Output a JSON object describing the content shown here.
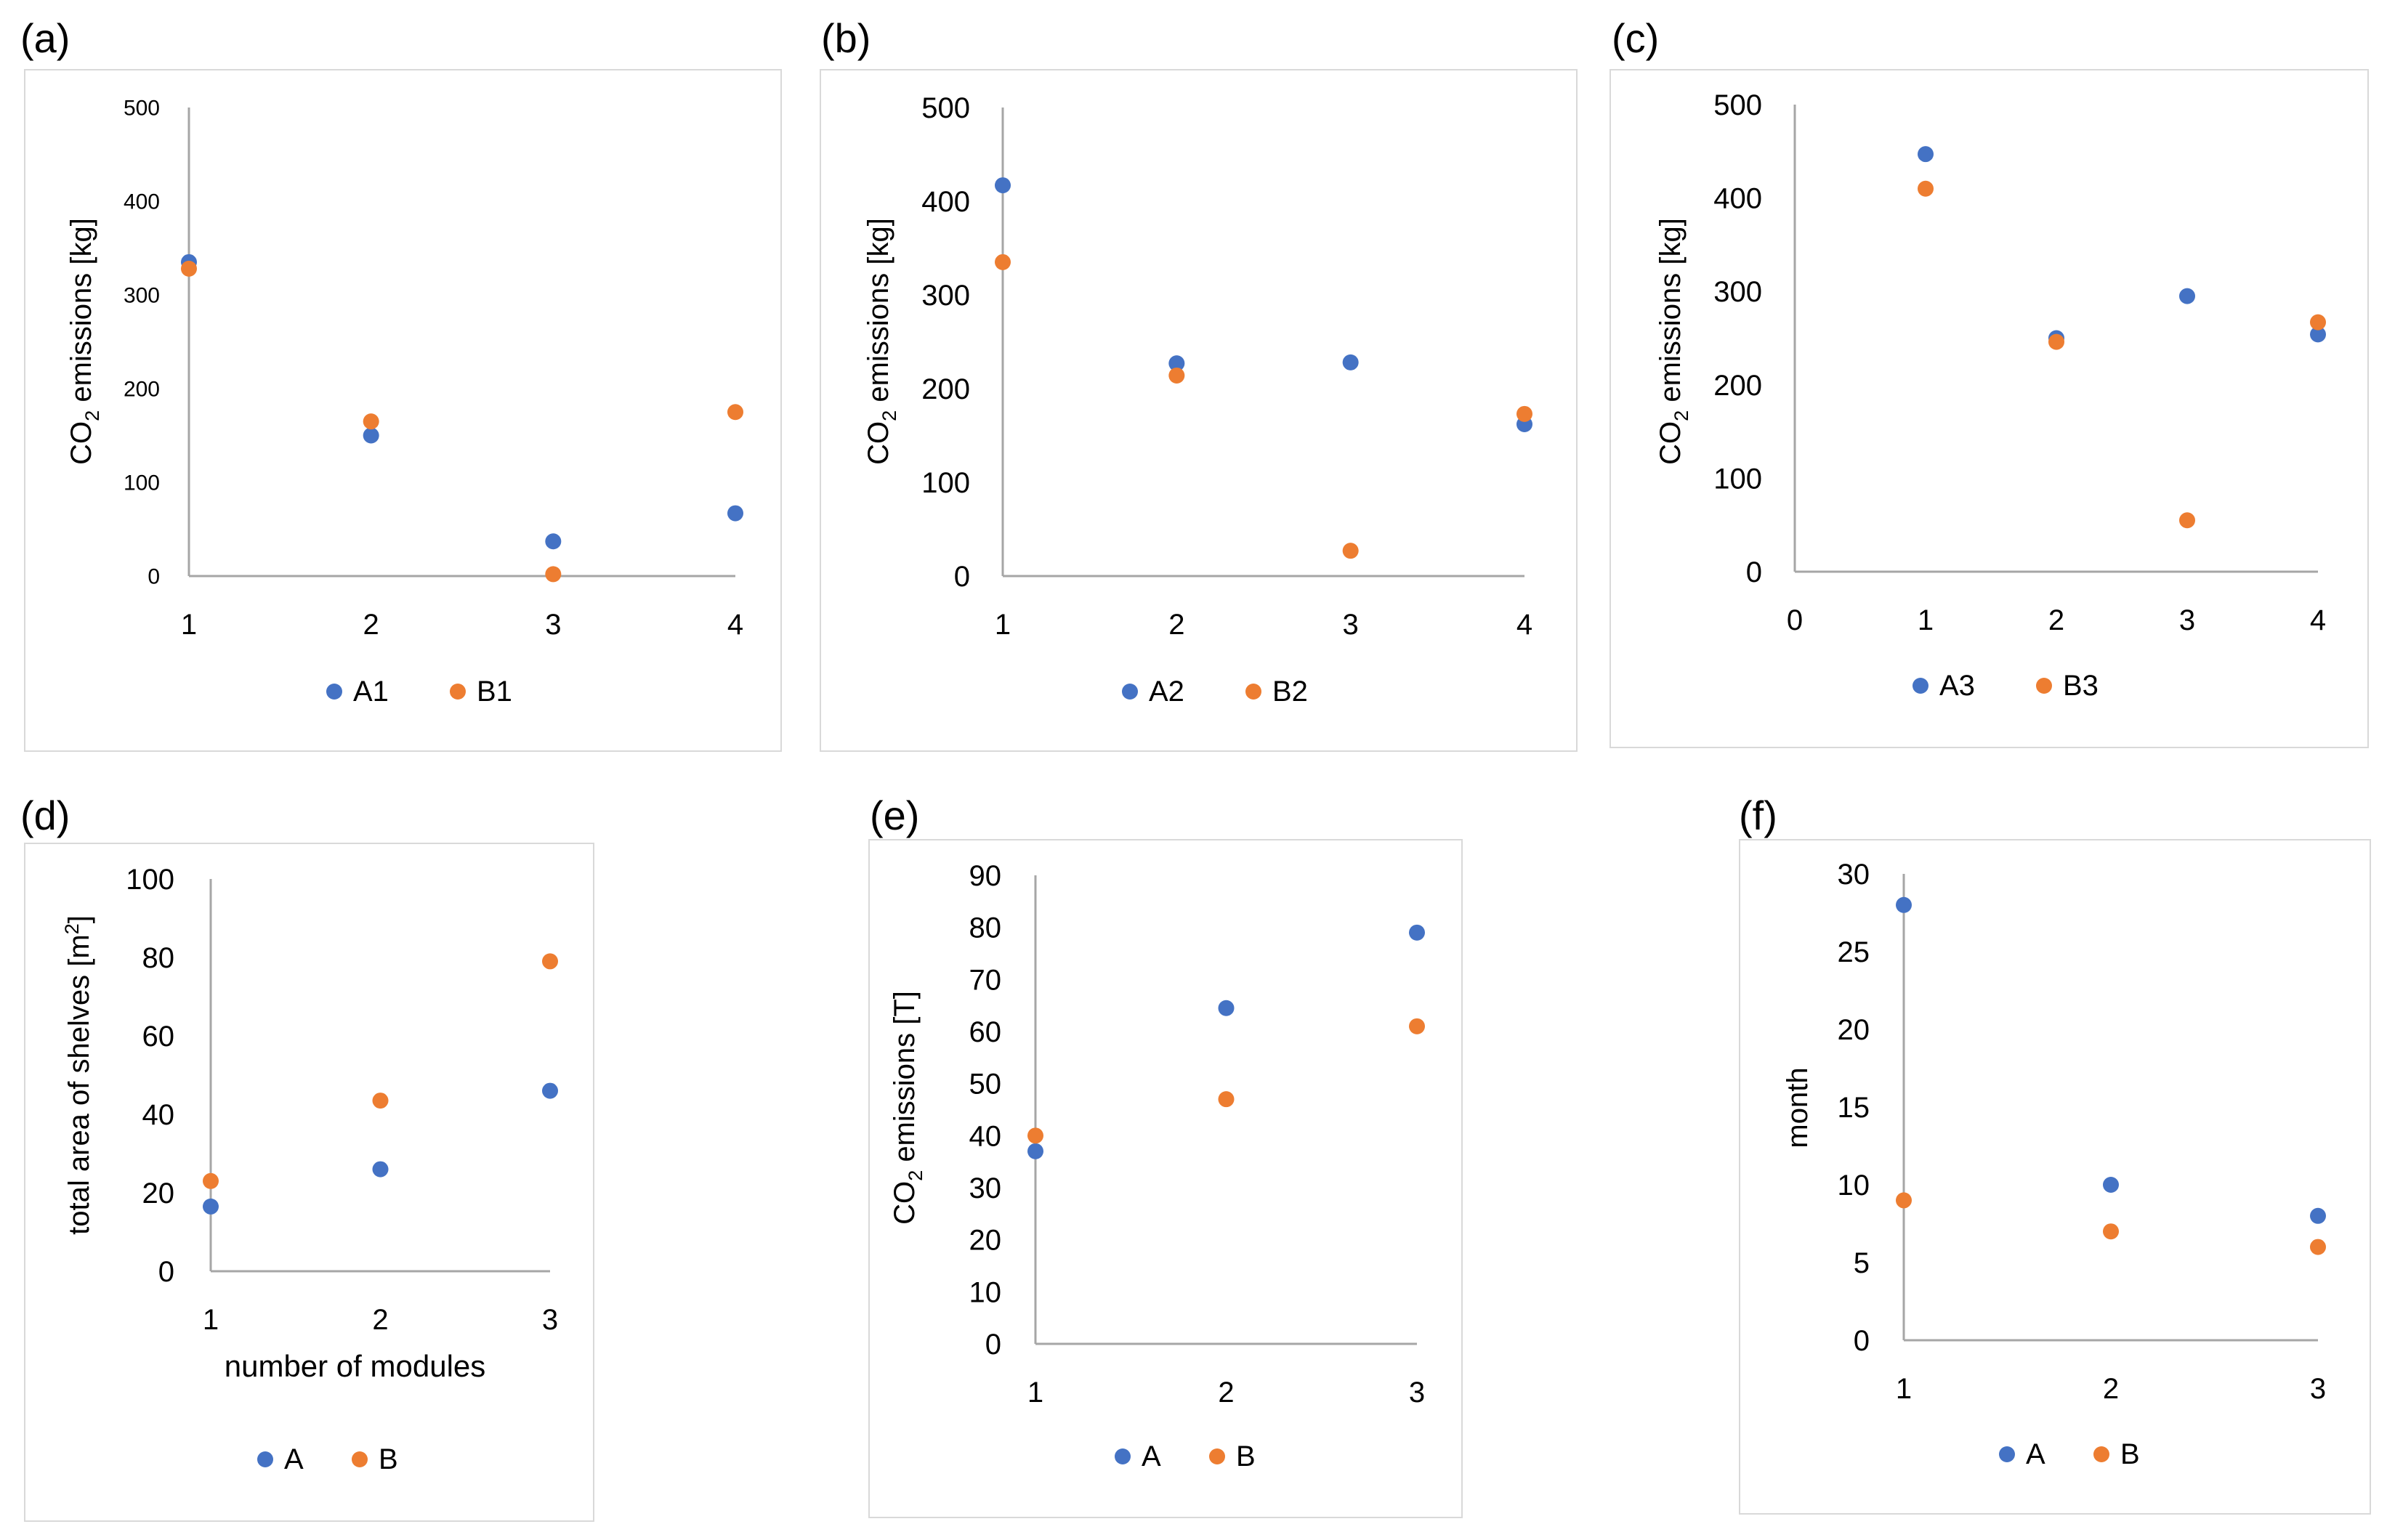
{
  "colors": {
    "A": "#4472c4",
    "B": "#ed7d31",
    "axis": "#a6a6a6",
    "border": "#d9d9d9"
  },
  "chart_data": [
    {
      "panel": "(a)",
      "type": "scatter",
      "xlabel": "",
      "ylabel_main": "CO",
      "ylabel_sub": "2",
      "ylabel_rest": " emissions [kg]",
      "xlim": [
        1,
        4
      ],
      "ylim": [
        0,
        500
      ],
      "xticks": [
        "1",
        "2",
        "3",
        "4"
      ],
      "yticks": [
        "0",
        "100",
        "200",
        "300",
        "400",
        "500"
      ],
      "series": [
        {
          "name": "A1",
          "color": "A",
          "x": [
            1,
            2,
            3,
            4
          ],
          "y": [
            335,
            150,
            37,
            67
          ]
        },
        {
          "name": "B1",
          "color": "B",
          "x": [
            1,
            2,
            3,
            4
          ],
          "y": [
            328,
            165,
            2,
            175
          ]
        }
      ]
    },
    {
      "panel": "(b)",
      "type": "scatter",
      "xlabel": "",
      "ylabel_main": "CO",
      "ylabel_sub": "2",
      "ylabel_rest": " emissions [kg]",
      "xlim": [
        1,
        4
      ],
      "ylim": [
        0,
        500
      ],
      "xticks": [
        "1",
        "2",
        "3",
        "4"
      ],
      "yticks": [
        "0",
        "100",
        "200",
        "300",
        "400",
        "500"
      ],
      "series": [
        {
          "name": "A2",
          "color": "A",
          "x": [
            1,
            2,
            3,
            4
          ],
          "y": [
            417,
            227,
            228,
            162
          ]
        },
        {
          "name": "B2",
          "color": "B",
          "x": [
            1,
            2,
            3,
            4
          ],
          "y": [
            335,
            214,
            27,
            173
          ]
        }
      ]
    },
    {
      "panel": "(c)",
      "type": "scatter",
      "xlabel": "",
      "ylabel_main": "CO",
      "ylabel_sub": "2",
      "ylabel_rest": " emissions [kg]",
      "xlim": [
        0,
        4
      ],
      "ylim": [
        0,
        500
      ],
      "xticks": [
        "0",
        "1",
        "2",
        "3",
        "4"
      ],
      "yticks": [
        "0",
        "100",
        "200",
        "300",
        "400",
        "500"
      ],
      "series": [
        {
          "name": "A3",
          "color": "A",
          "x": [
            1,
            2,
            3,
            4
          ],
          "y": [
            447,
            250,
            295,
            254
          ]
        },
        {
          "name": "B3",
          "color": "B",
          "x": [
            1,
            2,
            3,
            4
          ],
          "y": [
            410,
            246,
            55,
            267
          ]
        }
      ]
    },
    {
      "panel": "(d)",
      "type": "scatter",
      "xlabel": "number  of modules",
      "ylabel_main": "total area of shelves [m",
      "ylabel_sup": "2",
      "ylabel_rest": "]",
      "xlim": [
        1,
        3
      ],
      "ylim": [
        0,
        100
      ],
      "xticks": [
        "1",
        "2",
        "3"
      ],
      "yticks": [
        "0",
        "20",
        "40",
        "60",
        "80",
        "100"
      ],
      "series": [
        {
          "name": "A",
          "color": "A",
          "x": [
            1,
            2,
            3
          ],
          "y": [
            16.5,
            26,
            46
          ]
        },
        {
          "name": "B",
          "color": "B",
          "x": [
            1,
            2,
            3
          ],
          "y": [
            23,
            43.5,
            79
          ]
        }
      ]
    },
    {
      "panel": "(e)",
      "type": "scatter",
      "xlabel": "",
      "ylabel_main": "CO",
      "ylabel_sub": "2",
      "ylabel_rest": " emissions [T]",
      "xlim": [
        1,
        3
      ],
      "ylim": [
        0,
        90
      ],
      "xticks": [
        "1",
        "2",
        "3"
      ],
      "yticks": [
        "0",
        "10",
        "20",
        "30",
        "40",
        "50",
        "60",
        "70",
        "80",
        "90"
      ],
      "series": [
        {
          "name": "A",
          "color": "A",
          "x": [
            1,
            2,
            3
          ],
          "y": [
            37,
            64.5,
            79
          ]
        },
        {
          "name": "B",
          "color": "B",
          "x": [
            1,
            2,
            3
          ],
          "y": [
            40,
            47,
            61
          ]
        }
      ]
    },
    {
      "panel": "(f)",
      "type": "scatter",
      "xlabel": "",
      "ylabel_main": "month",
      "xlim": [
        1,
        3
      ],
      "ylim": [
        0,
        30
      ],
      "xticks": [
        "1",
        "2",
        "3"
      ],
      "yticks": [
        "0",
        "5",
        "10",
        "15",
        "20",
        "25",
        "30"
      ],
      "series": [
        {
          "name": "A",
          "color": "A",
          "x": [
            1,
            2,
            3
          ],
          "y": [
            28,
            10,
            8
          ]
        },
        {
          "name": "B",
          "color": "B",
          "x": [
            1,
            2,
            3
          ],
          "y": [
            9,
            7,
            6
          ]
        }
      ]
    }
  ]
}
